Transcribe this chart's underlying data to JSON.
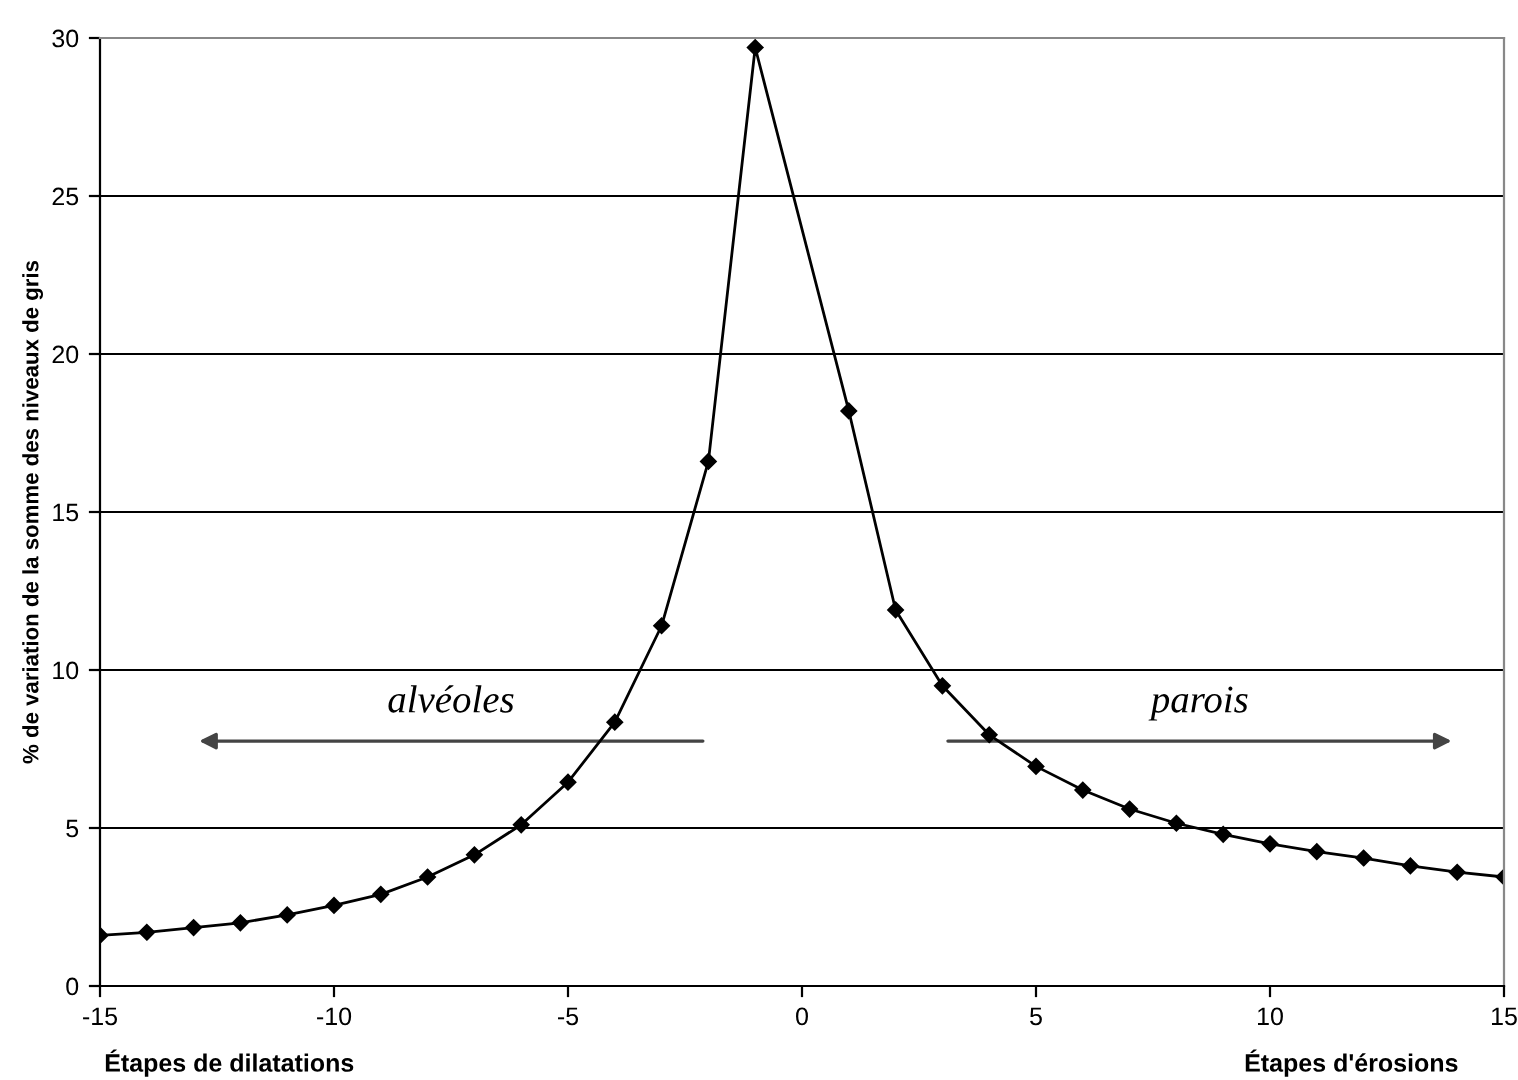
{
  "chart_data": {
    "type": "line",
    "x": [
      -15,
      -14,
      -13,
      -12,
      -11,
      -10,
      -9,
      -8,
      -7,
      -6,
      -5,
      -4,
      -3,
      -2,
      -1,
      1,
      2,
      3,
      4,
      5,
      6,
      7,
      8,
      9,
      10,
      11,
      12,
      13,
      14,
      15
    ],
    "series": [
      {
        "color": "#000000",
        "values": [
          1.6,
          1.7,
          1.85,
          2.0,
          2.25,
          2.55,
          2.9,
          3.45,
          4.15,
          5.1,
          6.45,
          8.35,
          11.4,
          16.6,
          29.7,
          18.2,
          11.9,
          9.5,
          7.95,
          6.95,
          6.2,
          5.6,
          5.15,
          4.8,
          4.5,
          4.25,
          4.05,
          3.8,
          3.6,
          3.45
        ]
      }
    ],
    "ylabel": "% de variation de la somme des niveaux de gris",
    "annotations": [
      "alvéoles",
      "parois",
      "Étapes de dilatations",
      "Étapes d'érosions"
    ],
    "xlim": [
      -15,
      15
    ],
    "ylim": [
      0,
      30
    ],
    "xticks": [
      -15,
      -10,
      -5,
      0,
      5,
      10,
      15
    ],
    "yticks": [
      0,
      5,
      10,
      15,
      20,
      25,
      30
    ],
    "grid": "y",
    "marker": "diamond",
    "line_style": "solid"
  }
}
